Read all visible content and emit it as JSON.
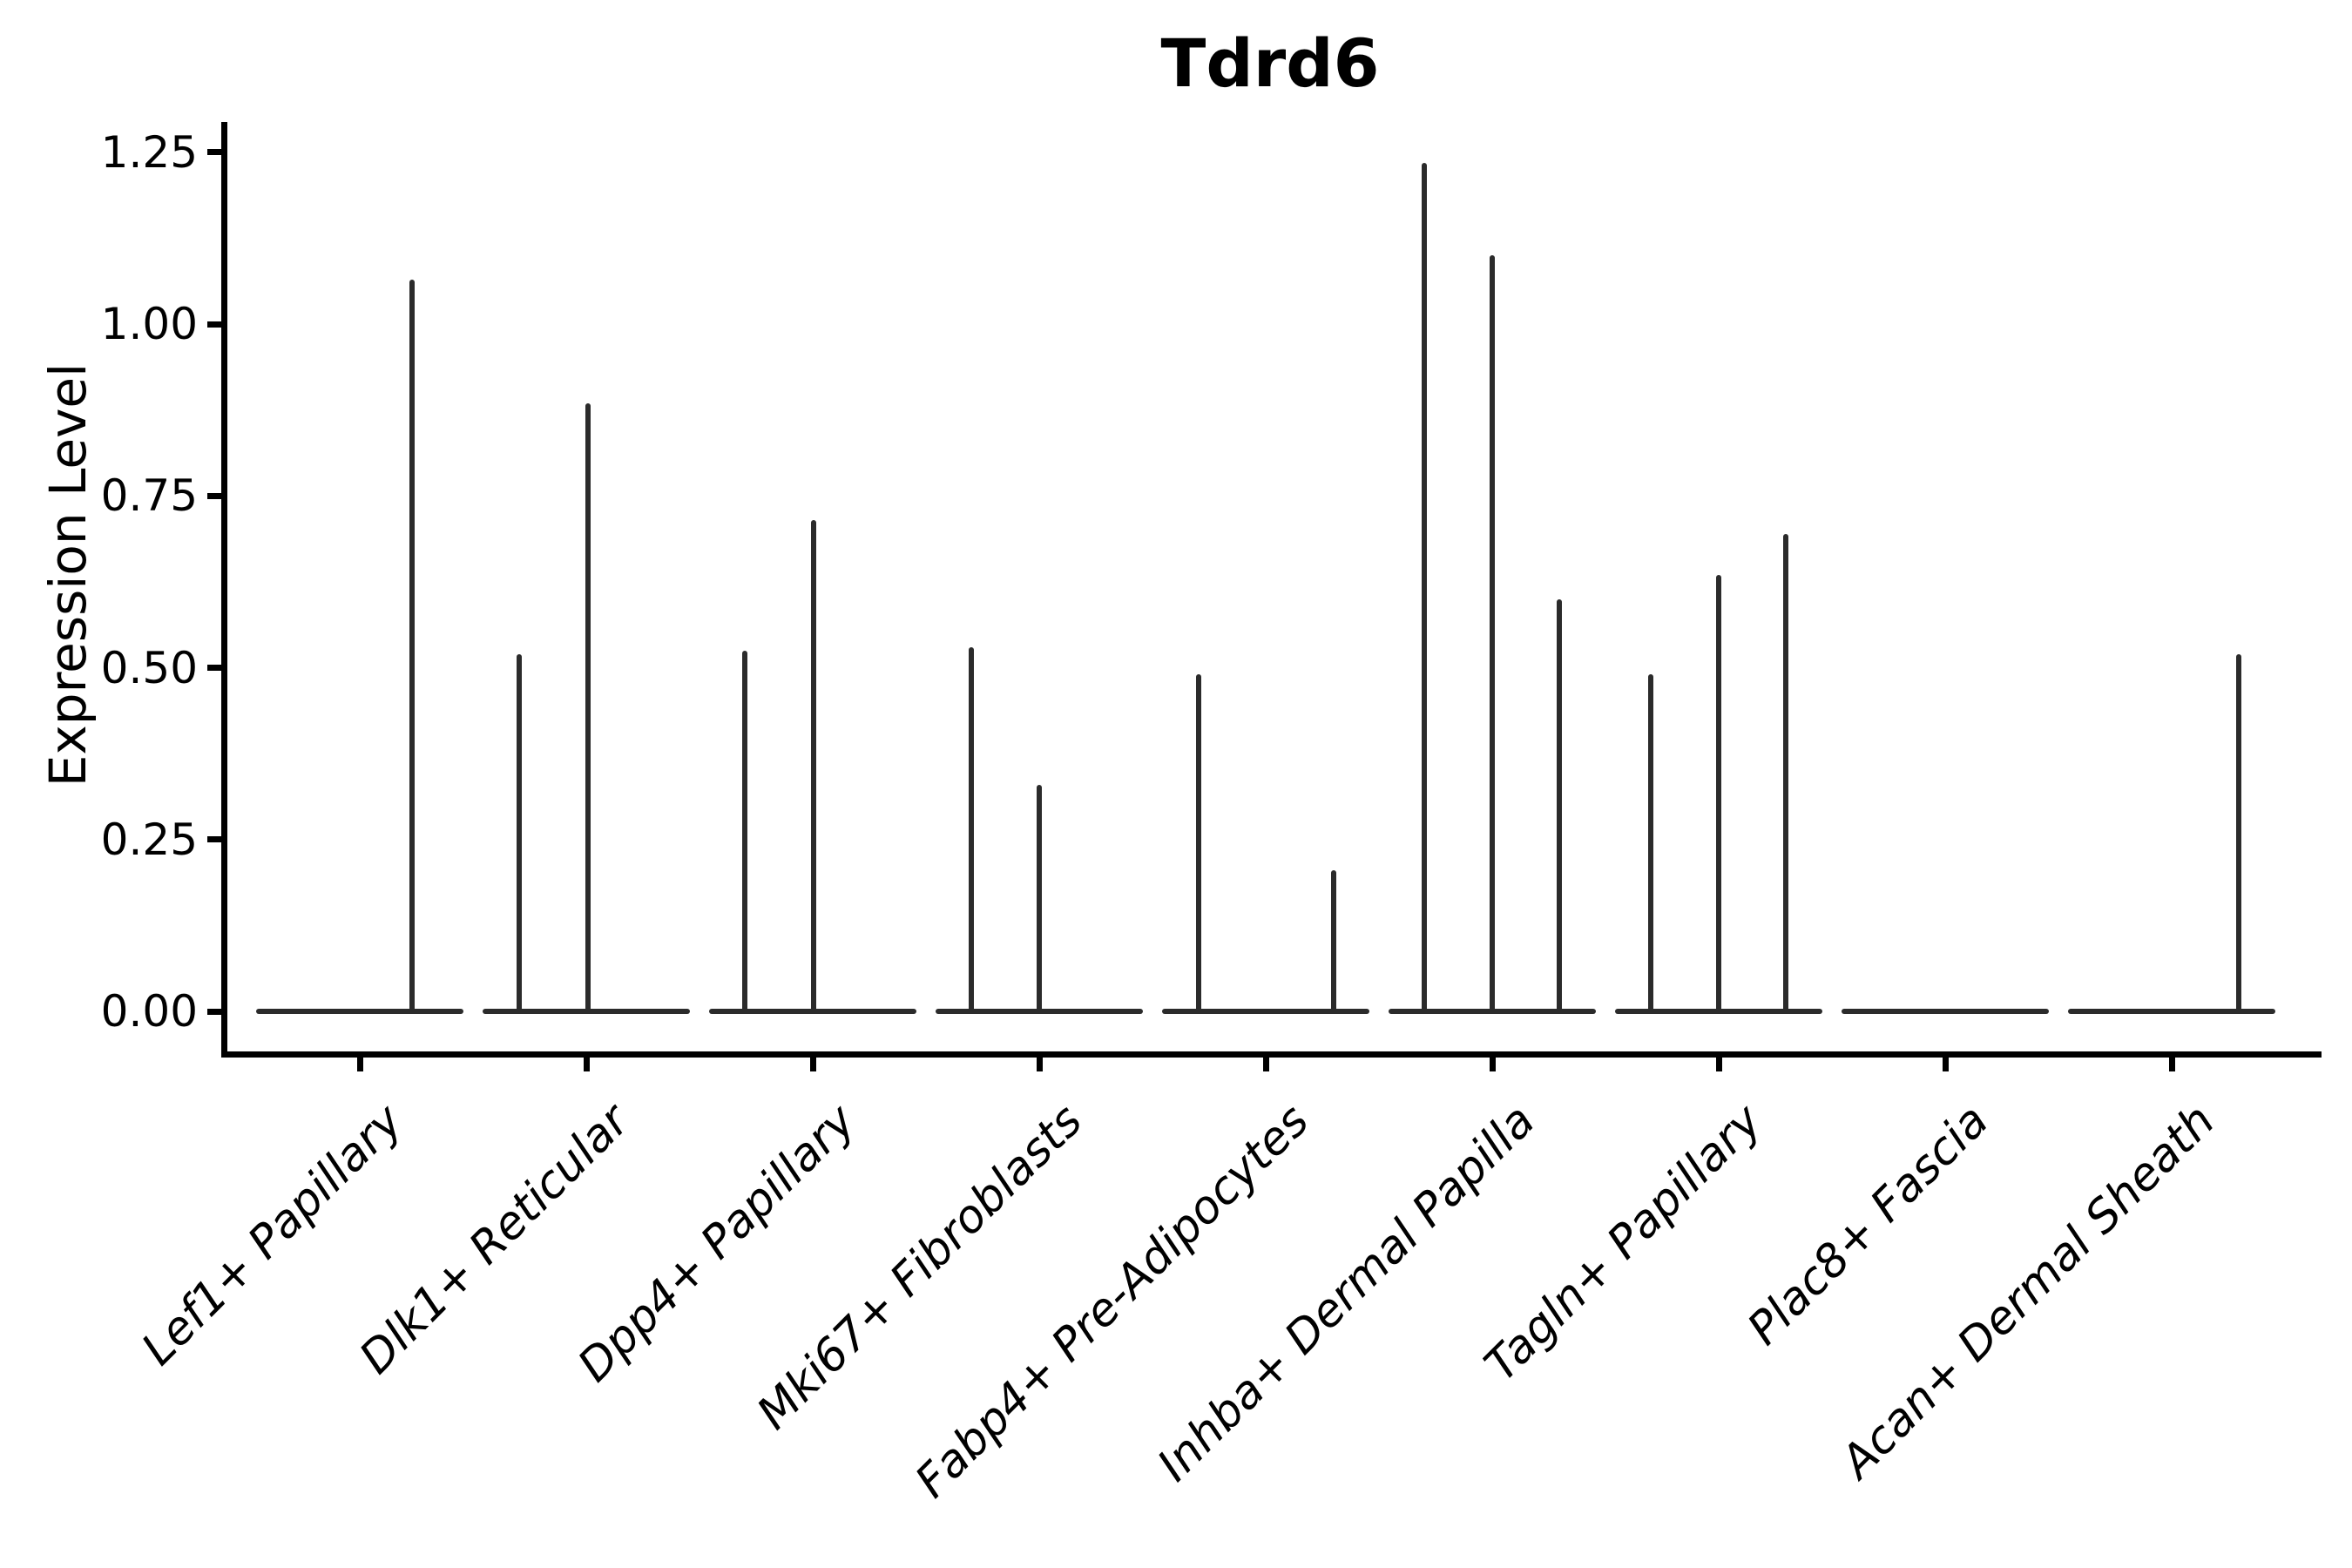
{
  "title": "Tdrd6",
  "y_axis": {
    "label": "Expression Level",
    "tick_labels": [
      "0.00",
      "0.25",
      "0.50",
      "0.75",
      "1.00",
      "1.25"
    ]
  },
  "colors": {
    "line": "#2b2b2b",
    "axis": "#000000",
    "text": "#000000",
    "background": "#ffffff"
  },
  "chart_data": {
    "type": "violin",
    "title": "Tdrd6",
    "ylabel": "Expression Level",
    "xlabel": "",
    "ylim": [
      0,
      1.3
    ],
    "grid": false,
    "legend_position": "none",
    "y_ticks": [
      0.0,
      0.25,
      0.5,
      0.75,
      1.0,
      1.25
    ],
    "y_tick_labels": [
      "0.00",
      "0.25",
      "0.50",
      "0.75",
      "1.00",
      "1.25"
    ],
    "categories": [
      "Lef1+ Papillary",
      "Dlk1+ Reticular",
      "Dpp4+ Papillary",
      "Mki67+ Fibroblasts",
      "Fabp4+ Pre-Adipocytes",
      "Inhba+ Dermal Papilla",
      "Tagln+ Papillary",
      "Plac8+ Fascia",
      "Acan+ Dermal Sheath"
    ],
    "description": "Collapsed violins: each cluster shows a flat density line at expression 0 with thin vertical spikes reaching the maximum expression of rare positive cells.",
    "groups": [
      {
        "label": "Lef1+ Papillary",
        "baseline_value": 0,
        "spikes": [
          {
            "dx": 60,
            "max": 1.065
          }
        ]
      },
      {
        "label": "Dlk1+ Reticular",
        "baseline_value": 0,
        "spikes": [
          {
            "dx": -77,
            "max": 0.52
          },
          {
            "dx": 2,
            "max": 0.885
          }
        ]
      },
      {
        "label": "Dpp4+ Papillary",
        "baseline_value": 0,
        "spikes": [
          {
            "dx": -78,
            "max": 0.525
          },
          {
            "dx": 1,
            "max": 0.715
          }
        ]
      },
      {
        "label": "Mki67+ Fibroblasts",
        "baseline_value": 0,
        "spikes": [
          {
            "dx": -78,
            "max": 0.53
          },
          {
            "dx": 0,
            "max": 0.33
          }
        ]
      },
      {
        "label": "Fabp4+ Pre-Adipocytes",
        "baseline_value": 0,
        "spikes": [
          {
            "dx": -77,
            "max": 0.49
          },
          {
            "dx": 78,
            "max": 0.205
          }
        ]
      },
      {
        "label": "Inhba+ Dermal Papilla",
        "baseline_value": 0,
        "spikes": [
          {
            "dx": -78,
            "max": 1.235
          },
          {
            "dx": 0,
            "max": 1.1
          },
          {
            "dx": 77,
            "max": 0.6
          }
        ]
      },
      {
        "label": "Tagln+ Papillary",
        "baseline_value": 0,
        "spikes": [
          {
            "dx": -78,
            "max": 0.49
          },
          {
            "dx": 0,
            "max": 0.635
          },
          {
            "dx": 77,
            "max": 0.695
          }
        ]
      },
      {
        "label": "Plac8+ Fascia",
        "baseline_value": 0,
        "spikes": []
      },
      {
        "label": "Acan+ Dermal Sheath",
        "baseline_value": 0,
        "spikes": [
          {
            "dx": 77,
            "max": 0.52
          }
        ]
      }
    ]
  }
}
